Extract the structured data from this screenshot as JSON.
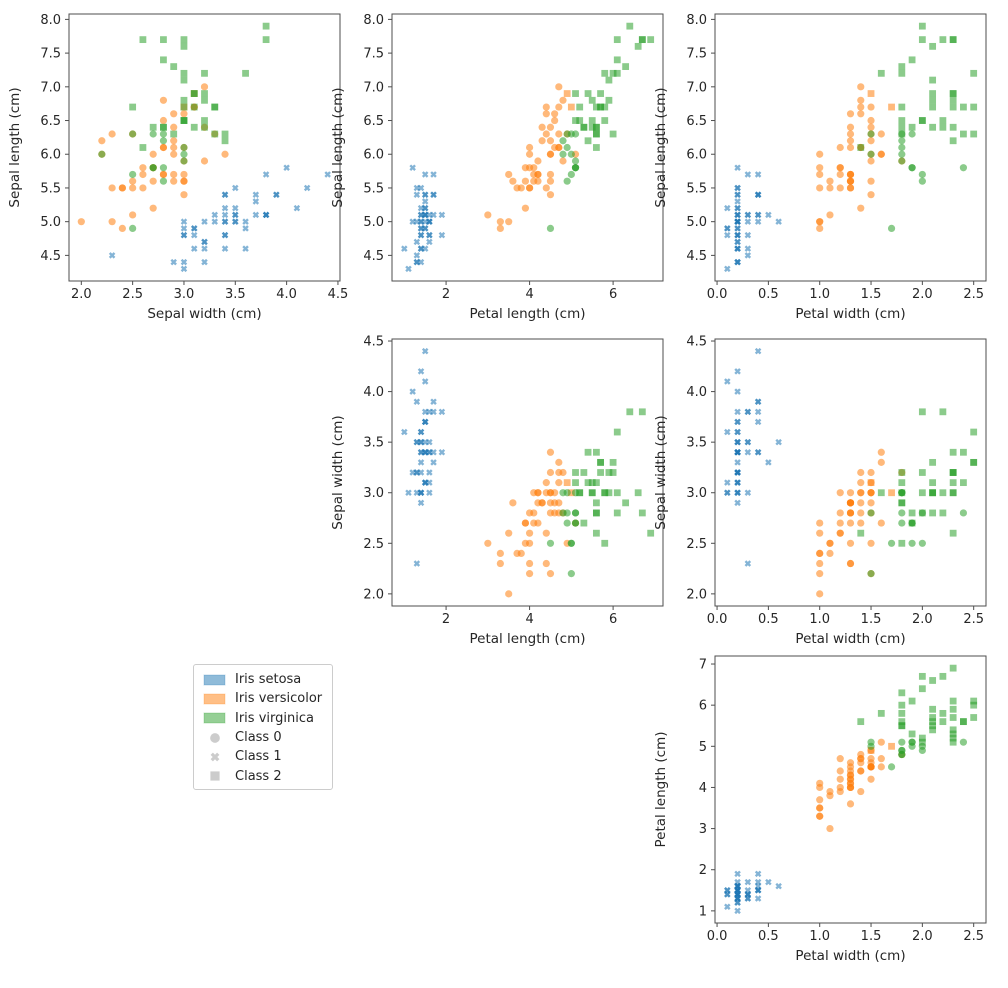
{
  "figure": {
    "background": "#ffffff",
    "text_color": "#262626",
    "spine_color": "#4d4d4d",
    "marker_opacity": 0.55
  },
  "legend": {
    "items": [
      {
        "label": "Iris setosa",
        "swatch": "patch",
        "color": "#1f77b4"
      },
      {
        "label": "Iris versicolor",
        "swatch": "patch",
        "color": "#ff7f0e"
      },
      {
        "label": "Iris virginica",
        "swatch": "patch",
        "color": "#2ca02c"
      },
      {
        "label": "Class 0",
        "swatch": "circle",
        "color": "#999999"
      },
      {
        "label": "Class 1",
        "swatch": "x",
        "color": "#999999"
      },
      {
        "label": "Class 2",
        "swatch": "square",
        "color": "#999999"
      }
    ]
  },
  "chart_data": {
    "type": "scatter",
    "features": [
      "Sepal length (cm)",
      "Sepal width (cm)",
      "Petal length (cm)",
      "Petal width (cm)"
    ],
    "feature_ranges": [
      [
        4.12,
        8.08
      ],
      [
        1.88,
        4.52
      ],
      [
        0.705,
        7.195
      ],
      [
        -0.02,
        2.62
      ]
    ],
    "species": [
      "Iris setosa",
      "Iris versicolor",
      "Iris virginica"
    ],
    "species_colors": [
      "#1f77b4",
      "#ff7f0e",
      "#2ca02c"
    ],
    "cluster_names": [
      "Class 0",
      "Class 1",
      "Class 2"
    ],
    "cluster_markers": [
      "circle",
      "x",
      "square"
    ],
    "grid": "off",
    "subplots": [
      {
        "name": "sepal-length-vs-sepal-width",
        "row": 0,
        "col": 0,
        "x_feature": 1,
        "y_feature": 0,
        "xlabel": "Sepal width (cm)",
        "ylabel": "Sepal length (cm)",
        "xticks": [
          "2.0",
          "2.5",
          "3.0",
          "3.5",
          "4.0",
          "4.5"
        ],
        "yticks": [
          "4.5",
          "5.0",
          "5.5",
          "6.0",
          "6.5",
          "7.0",
          "7.5",
          "8.0"
        ]
      },
      {
        "name": "sepal-length-vs-petal-length",
        "row": 0,
        "col": 1,
        "x_feature": 2,
        "y_feature": 0,
        "xlabel": "Petal length (cm)",
        "ylabel": "Sepal length (cm)",
        "xticks": [
          "2",
          "4",
          "6"
        ],
        "yticks": [
          "4.5",
          "5.0",
          "5.5",
          "6.0",
          "6.5",
          "7.0",
          "7.5",
          "8.0"
        ]
      },
      {
        "name": "sepal-length-vs-petal-width",
        "row": 0,
        "col": 2,
        "x_feature": 3,
        "y_feature": 0,
        "xlabel": "Petal width (cm)",
        "ylabel": "Sepal length (cm)",
        "xticks": [
          "0.0",
          "0.5",
          "1.0",
          "1.5",
          "2.0",
          "2.5"
        ],
        "yticks": [
          "4.5",
          "5.0",
          "5.5",
          "6.0",
          "6.5",
          "7.0",
          "7.5",
          "8.0"
        ]
      },
      {
        "name": "sepal-width-vs-petal-length",
        "row": 1,
        "col": 1,
        "x_feature": 2,
        "y_feature": 1,
        "xlabel": "Petal length (cm)",
        "ylabel": "Sepal width (cm)",
        "xticks": [
          "2",
          "4",
          "6"
        ],
        "yticks": [
          "2.0",
          "2.5",
          "3.0",
          "3.5",
          "4.0",
          "4.5"
        ]
      },
      {
        "name": "sepal-width-vs-petal-width",
        "row": 1,
        "col": 2,
        "x_feature": 3,
        "y_feature": 1,
        "xlabel": "Petal width (cm)",
        "ylabel": "Sepal width (cm)",
        "xticks": [
          "0.0",
          "0.5",
          "1.0",
          "1.5",
          "2.0",
          "2.5"
        ],
        "yticks": [
          "2.0",
          "2.5",
          "3.0",
          "3.5",
          "4.0",
          "4.5"
        ]
      },
      {
        "name": "petal-length-vs-petal-width",
        "row": 2,
        "col": 2,
        "x_feature": 3,
        "y_feature": 2,
        "xlabel": "Petal width (cm)",
        "ylabel": "Petal length (cm)",
        "xticks": [
          "0.0",
          "0.5",
          "1.0",
          "1.5",
          "2.0",
          "2.5"
        ],
        "yticks": [
          "1",
          "2",
          "3",
          "4",
          "5",
          "6",
          "7"
        ]
      }
    ],
    "point_format": [
      "sepal_length",
      "sepal_width",
      "petal_length",
      "petal_width",
      "species_index",
      "class_index"
    ],
    "points": [
      [
        5.1,
        3.5,
        1.4,
        0.2,
        0,
        1
      ],
      [
        4.9,
        3.0,
        1.4,
        0.2,
        0,
        1
      ],
      [
        4.7,
        3.2,
        1.3,
        0.2,
        0,
        1
      ],
      [
        4.6,
        3.1,
        1.5,
        0.2,
        0,
        1
      ],
      [
        5.0,
        3.6,
        1.4,
        0.2,
        0,
        1
      ],
      [
        5.4,
        3.9,
        1.7,
        0.4,
        0,
        1
      ],
      [
        4.6,
        3.4,
        1.4,
        0.3,
        0,
        1
      ],
      [
        5.0,
        3.4,
        1.5,
        0.2,
        0,
        1
      ],
      [
        4.4,
        2.9,
        1.4,
        0.2,
        0,
        1
      ],
      [
        4.9,
        3.1,
        1.5,
        0.1,
        0,
        1
      ],
      [
        5.4,
        3.7,
        1.5,
        0.2,
        0,
        1
      ],
      [
        4.8,
        3.4,
        1.6,
        0.2,
        0,
        1
      ],
      [
        4.8,
        3.0,
        1.4,
        0.1,
        0,
        1
      ],
      [
        4.3,
        3.0,
        1.1,
        0.1,
        0,
        1
      ],
      [
        5.8,
        4.0,
        1.2,
        0.2,
        0,
        1
      ],
      [
        5.7,
        4.4,
        1.5,
        0.4,
        0,
        1
      ],
      [
        5.4,
        3.9,
        1.3,
        0.4,
        0,
        1
      ],
      [
        5.1,
        3.5,
        1.4,
        0.3,
        0,
        1
      ],
      [
        5.7,
        3.8,
        1.7,
        0.3,
        0,
        1
      ],
      [
        5.1,
        3.8,
        1.5,
        0.3,
        0,
        1
      ],
      [
        5.4,
        3.4,
        1.7,
        0.2,
        0,
        1
      ],
      [
        5.1,
        3.7,
        1.5,
        0.4,
        0,
        1
      ],
      [
        4.6,
        3.6,
        1.0,
        0.2,
        0,
        1
      ],
      [
        5.1,
        3.3,
        1.7,
        0.5,
        0,
        1
      ],
      [
        4.8,
        3.4,
        1.9,
        0.2,
        0,
        1
      ],
      [
        5.0,
        3.0,
        1.6,
        0.2,
        0,
        1
      ],
      [
        5.0,
        3.4,
        1.6,
        0.4,
        0,
        1
      ],
      [
        5.2,
        3.5,
        1.5,
        0.2,
        0,
        1
      ],
      [
        5.2,
        3.4,
        1.4,
        0.2,
        0,
        1
      ],
      [
        4.7,
        3.2,
        1.6,
        0.2,
        0,
        1
      ],
      [
        4.8,
        3.1,
        1.6,
        0.2,
        0,
        1
      ],
      [
        5.4,
        3.4,
        1.5,
        0.4,
        0,
        1
      ],
      [
        5.2,
        4.1,
        1.5,
        0.1,
        0,
        1
      ],
      [
        5.5,
        4.2,
        1.4,
        0.2,
        0,
        1
      ],
      [
        4.9,
        3.1,
        1.5,
        0.2,
        0,
        1
      ],
      [
        5.0,
        3.2,
        1.2,
        0.2,
        0,
        1
      ],
      [
        5.5,
        3.5,
        1.3,
        0.2,
        0,
        1
      ],
      [
        4.9,
        3.6,
        1.4,
        0.1,
        0,
        1
      ],
      [
        4.4,
        3.0,
        1.3,
        0.2,
        0,
        1
      ],
      [
        5.1,
        3.4,
        1.5,
        0.2,
        0,
        1
      ],
      [
        5.0,
        3.5,
        1.3,
        0.3,
        0,
        1
      ],
      [
        4.5,
        2.3,
        1.3,
        0.3,
        0,
        1
      ],
      [
        4.4,
        3.2,
        1.3,
        0.2,
        0,
        1
      ],
      [
        5.0,
        3.5,
        1.6,
        0.6,
        0,
        1
      ],
      [
        5.1,
        3.8,
        1.9,
        0.4,
        0,
        1
      ],
      [
        4.8,
        3.0,
        1.4,
        0.3,
        0,
        1
      ],
      [
        5.1,
        3.8,
        1.6,
        0.2,
        0,
        1
      ],
      [
        4.6,
        3.2,
        1.4,
        0.2,
        0,
        1
      ],
      [
        5.3,
        3.7,
        1.5,
        0.2,
        0,
        1
      ],
      [
        5.0,
        3.3,
        1.4,
        0.2,
        0,
        1
      ],
      [
        7.0,
        3.2,
        4.7,
        1.4,
        1,
        0
      ],
      [
        6.4,
        3.2,
        4.5,
        1.5,
        1,
        0
      ],
      [
        6.9,
        3.1,
        4.9,
        1.5,
        1,
        2
      ],
      [
        5.5,
        2.3,
        4.0,
        1.3,
        1,
        0
      ],
      [
        6.5,
        2.8,
        4.6,
        1.5,
        1,
        0
      ],
      [
        5.7,
        2.8,
        4.5,
        1.3,
        1,
        0
      ],
      [
        6.3,
        3.3,
        4.7,
        1.6,
        1,
        0
      ],
      [
        4.9,
        2.4,
        3.3,
        1.0,
        1,
        0
      ],
      [
        6.6,
        2.9,
        4.6,
        1.3,
        1,
        0
      ],
      [
        5.2,
        2.7,
        3.9,
        1.4,
        1,
        0
      ],
      [
        5.0,
        2.0,
        3.5,
        1.0,
        1,
        0
      ],
      [
        5.9,
        3.0,
        4.2,
        1.5,
        1,
        0
      ],
      [
        6.0,
        2.2,
        4.0,
        1.0,
        1,
        0
      ],
      [
        6.1,
        2.9,
        4.7,
        1.4,
        1,
        0
      ],
      [
        5.6,
        2.9,
        3.6,
        1.3,
        1,
        0
      ],
      [
        6.7,
        3.1,
        4.4,
        1.4,
        1,
        0
      ],
      [
        5.6,
        3.0,
        4.5,
        1.5,
        1,
        0
      ],
      [
        5.8,
        2.7,
        4.1,
        1.0,
        1,
        0
      ],
      [
        6.2,
        2.2,
        4.5,
        1.5,
        1,
        0
      ],
      [
        5.6,
        2.5,
        3.9,
        1.1,
        1,
        0
      ],
      [
        5.9,
        3.2,
        4.8,
        1.8,
        1,
        0
      ],
      [
        6.1,
        2.8,
        4.0,
        1.3,
        1,
        0
      ],
      [
        6.3,
        2.5,
        4.9,
        1.5,
        1,
        0
      ],
      [
        6.1,
        2.8,
        4.7,
        1.2,
        1,
        0
      ],
      [
        6.4,
        2.9,
        4.3,
        1.3,
        1,
        0
      ],
      [
        6.6,
        3.0,
        4.4,
        1.4,
        1,
        0
      ],
      [
        6.8,
        2.8,
        4.8,
        1.4,
        1,
        0
      ],
      [
        6.7,
        3.0,
        5.0,
        1.7,
        1,
        2
      ],
      [
        6.0,
        2.9,
        4.5,
        1.5,
        1,
        0
      ],
      [
        5.7,
        2.6,
        3.5,
        1.0,
        1,
        0
      ],
      [
        5.5,
        2.4,
        3.8,
        1.1,
        1,
        0
      ],
      [
        5.5,
        2.4,
        3.7,
        1.0,
        1,
        0
      ],
      [
        5.8,
        2.7,
        3.9,
        1.2,
        1,
        0
      ],
      [
        6.0,
        2.7,
        5.1,
        1.6,
        1,
        0
      ],
      [
        5.4,
        3.0,
        4.5,
        1.5,
        1,
        0
      ],
      [
        6.0,
        3.4,
        4.5,
        1.6,
        1,
        0
      ],
      [
        6.7,
        3.1,
        4.7,
        1.5,
        1,
        0
      ],
      [
        6.3,
        2.3,
        4.4,
        1.3,
        1,
        0
      ],
      [
        5.6,
        3.0,
        4.1,
        1.3,
        1,
        0
      ],
      [
        5.5,
        2.5,
        4.0,
        1.3,
        1,
        0
      ],
      [
        5.5,
        2.6,
        4.4,
        1.2,
        1,
        0
      ],
      [
        6.1,
        3.0,
        4.6,
        1.4,
        1,
        0
      ],
      [
        5.8,
        2.6,
        4.0,
        1.2,
        1,
        0
      ],
      [
        5.0,
        2.3,
        3.3,
        1.0,
        1,
        0
      ],
      [
        5.6,
        2.7,
        4.2,
        1.3,
        1,
        0
      ],
      [
        5.7,
        3.0,
        4.2,
        1.2,
        1,
        0
      ],
      [
        5.7,
        2.9,
        4.2,
        1.3,
        1,
        0
      ],
      [
        6.2,
        2.9,
        4.3,
        1.3,
        1,
        0
      ],
      [
        5.1,
        2.5,
        3.0,
        1.1,
        1,
        0
      ],
      [
        5.7,
        2.8,
        4.1,
        1.3,
        1,
        0
      ],
      [
        6.3,
        3.3,
        6.0,
        2.5,
        2,
        2
      ],
      [
        5.8,
        2.7,
        5.1,
        1.9,
        2,
        0
      ],
      [
        7.1,
        3.0,
        5.9,
        2.1,
        2,
        2
      ],
      [
        6.3,
        2.9,
        5.6,
        1.8,
        2,
        2
      ],
      [
        6.5,
        3.0,
        5.8,
        2.2,
        2,
        2
      ],
      [
        7.6,
        3.0,
        6.6,
        2.1,
        2,
        2
      ],
      [
        4.9,
        2.5,
        4.5,
        1.7,
        2,
        0
      ],
      [
        7.3,
        2.9,
        6.3,
        1.8,
        2,
        2
      ],
      [
        6.7,
        2.5,
        5.8,
        1.8,
        2,
        2
      ],
      [
        7.2,
        3.6,
        6.1,
        2.5,
        2,
        2
      ],
      [
        6.5,
        3.2,
        5.1,
        2.0,
        2,
        2
      ],
      [
        6.4,
        2.7,
        5.3,
        1.9,
        2,
        2
      ],
      [
        6.8,
        3.0,
        5.5,
        2.1,
        2,
        2
      ],
      [
        5.7,
        2.5,
        5.0,
        2.0,
        2,
        0
      ],
      [
        5.8,
        2.8,
        5.1,
        2.4,
        2,
        0
      ],
      [
        6.4,
        3.2,
        5.3,
        2.3,
        2,
        2
      ],
      [
        6.5,
        3.0,
        5.5,
        1.8,
        2,
        2
      ],
      [
        7.7,
        3.8,
        6.7,
        2.2,
        2,
        2
      ],
      [
        7.7,
        2.6,
        6.9,
        2.3,
        2,
        2
      ],
      [
        6.0,
        2.2,
        5.0,
        1.5,
        2,
        0
      ],
      [
        6.9,
        3.2,
        5.7,
        2.3,
        2,
        2
      ],
      [
        5.6,
        2.8,
        4.9,
        2.0,
        2,
        0
      ],
      [
        7.7,
        2.8,
        6.7,
        2.0,
        2,
        2
      ],
      [
        6.3,
        2.7,
        4.9,
        1.8,
        2,
        0
      ],
      [
        6.7,
        3.3,
        5.7,
        2.1,
        2,
        2
      ],
      [
        7.2,
        3.2,
        6.0,
        1.8,
        2,
        2
      ],
      [
        6.2,
        2.8,
        4.8,
        1.8,
        2,
        0
      ],
      [
        6.1,
        3.0,
        4.9,
        1.8,
        2,
        0
      ],
      [
        6.4,
        2.8,
        5.6,
        2.1,
        2,
        2
      ],
      [
        7.2,
        3.0,
        5.8,
        1.6,
        2,
        2
      ],
      [
        7.4,
        2.8,
        6.1,
        1.9,
        2,
        2
      ],
      [
        7.9,
        3.8,
        6.4,
        2.0,
        2,
        2
      ],
      [
        6.4,
        2.8,
        5.6,
        2.2,
        2,
        2
      ],
      [
        6.3,
        2.8,
        5.1,
        1.5,
        2,
        0
      ],
      [
        6.1,
        2.6,
        5.6,
        1.4,
        2,
        2
      ],
      [
        7.7,
        3.0,
        6.1,
        2.3,
        2,
        2
      ],
      [
        6.3,
        3.4,
        5.6,
        2.4,
        2,
        2
      ],
      [
        6.4,
        3.1,
        5.5,
        1.8,
        2,
        2
      ],
      [
        6.0,
        3.0,
        4.8,
        1.8,
        2,
        0
      ],
      [
        6.9,
        3.1,
        5.4,
        2.1,
        2,
        2
      ],
      [
        6.7,
        3.1,
        5.6,
        2.4,
        2,
        2
      ],
      [
        6.9,
        3.1,
        5.1,
        2.3,
        2,
        2
      ],
      [
        5.8,
        2.7,
        5.1,
        1.9,
        2,
        0
      ],
      [
        6.8,
        3.2,
        5.9,
        2.3,
        2,
        2
      ],
      [
        6.7,
        3.3,
        5.7,
        2.5,
        2,
        2
      ],
      [
        6.7,
        3.0,
        5.2,
        2.3,
        2,
        2
      ],
      [
        6.3,
        2.5,
        5.0,
        1.9,
        2,
        0
      ],
      [
        6.5,
        3.0,
        5.2,
        2.0,
        2,
        2
      ],
      [
        6.2,
        3.4,
        5.4,
        2.3,
        2,
        2
      ],
      [
        5.9,
        3.0,
        5.1,
        1.8,
        2,
        0
      ]
    ]
  }
}
